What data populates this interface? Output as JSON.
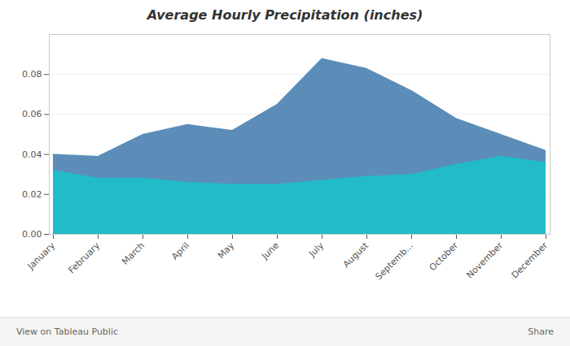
{
  "chart_data": {
    "type": "area",
    "title": "Average Hourly Precipitation (inches)",
    "categories": [
      "January",
      "February",
      "March",
      "April",
      "May",
      "June",
      "July",
      "August",
      "Septemb...",
      "October",
      "November",
      "December"
    ],
    "series": [
      {
        "color": "#5b8db8",
        "values": [
          0.04,
          0.039,
          0.05,
          0.055,
          0.052,
          0.065,
          0.088,
          0.083,
          0.072,
          0.058,
          0.05,
          0.042
        ]
      },
      {
        "color": "#22bbc9",
        "values": [
          0.032,
          0.028,
          0.028,
          0.026,
          0.025,
          0.025,
          0.027,
          0.029,
          0.03,
          0.035,
          0.039,
          0.036
        ]
      }
    ],
    "ylim": [
      0.0,
      0.1
    ],
    "yticks": [
      {
        "value": 0,
        "label": "0.00"
      },
      0.02,
      0.04,
      0.06,
      0.08
    ],
    "grid": true,
    "footer": [
      "View on Tableau Public",
      "Share"
    ]
  }
}
